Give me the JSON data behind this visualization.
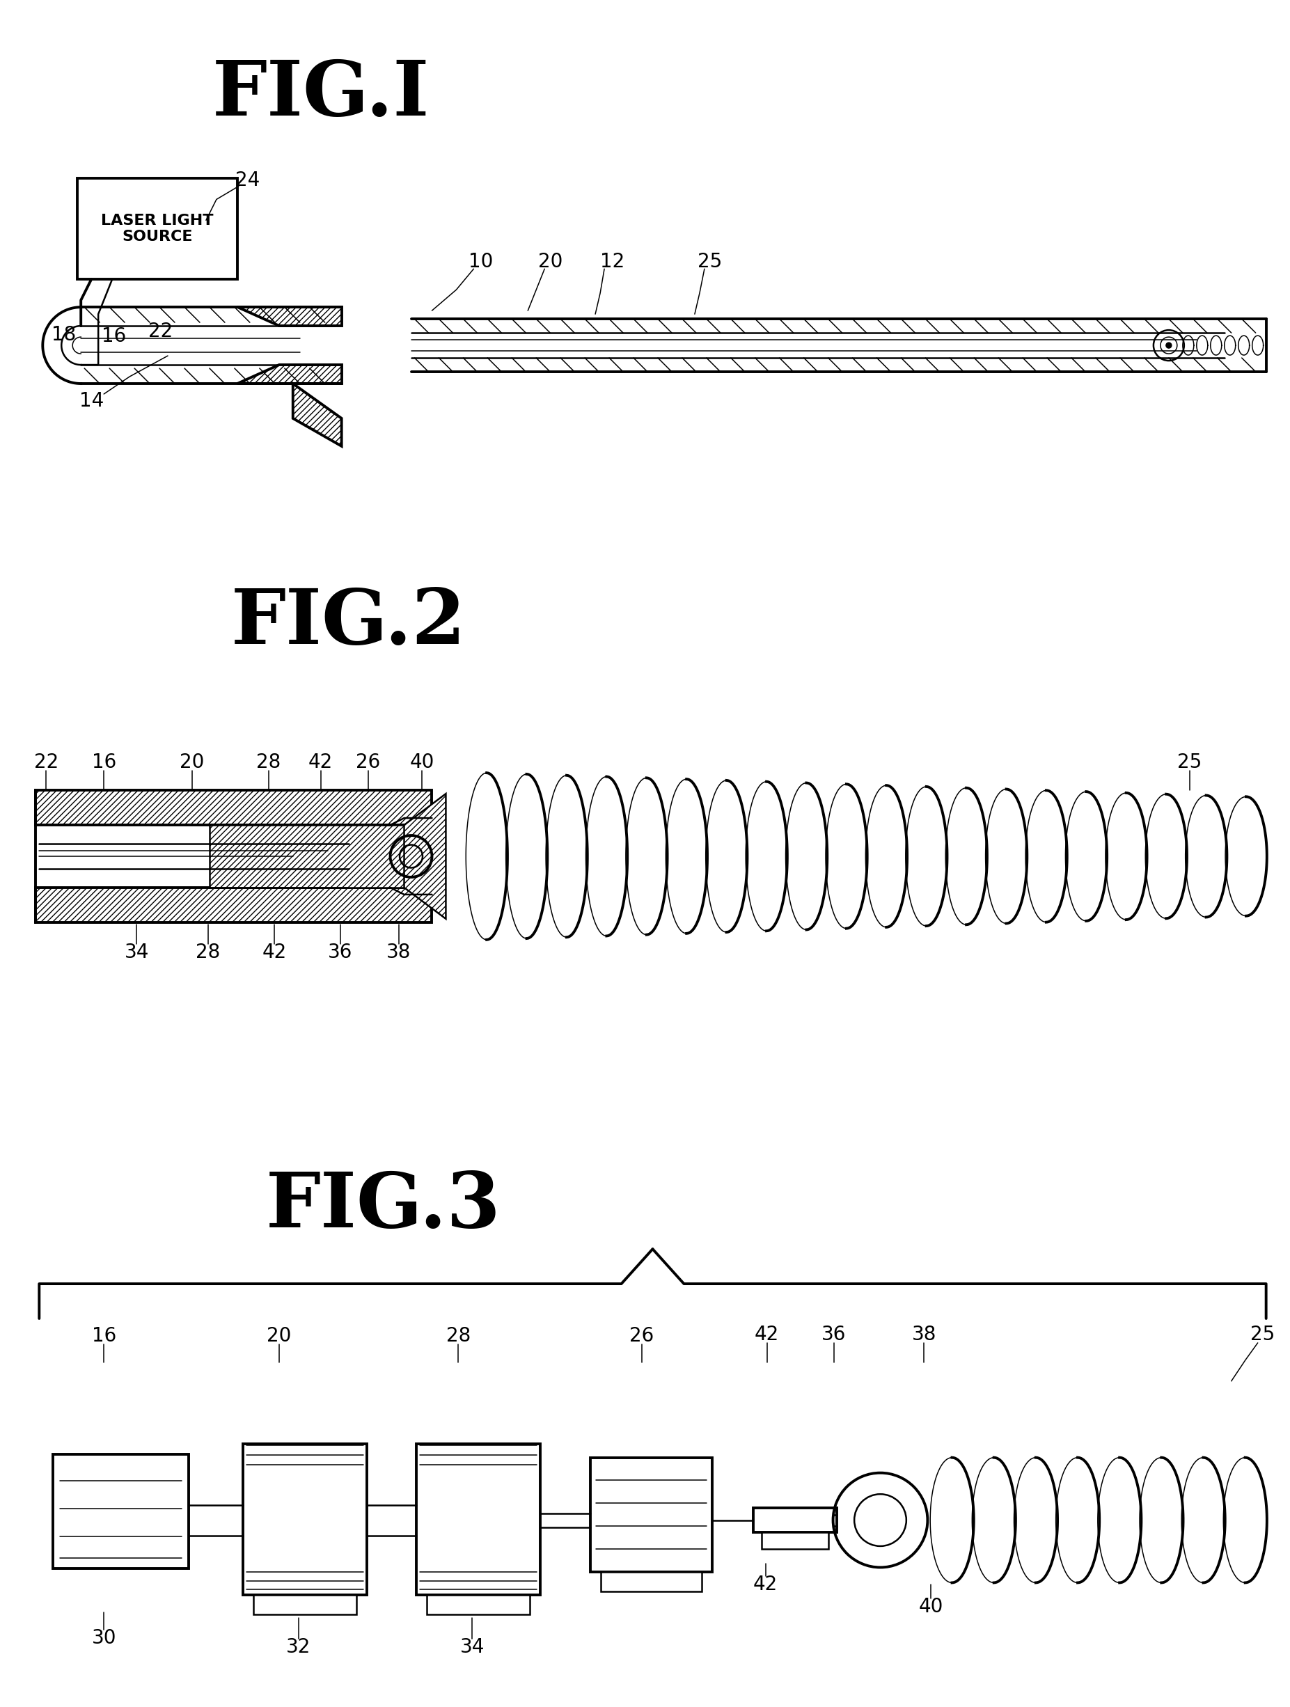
{
  "bg_color": "#ffffff",
  "lc": "#000000",
  "fig_width": 18.53,
  "fig_height": 24.52,
  "fig1_title": "FIG.I",
  "fig2_title": "FIG.2",
  "fig3_title": "FIG.3",
  "laser_box_text": "LASER LIGHT\nSOURCE",
  "title_fontsize": 80,
  "label_fontsize": 20,
  "lw_thick": 2.8,
  "lw_med": 1.8,
  "lw_thin": 1.1
}
